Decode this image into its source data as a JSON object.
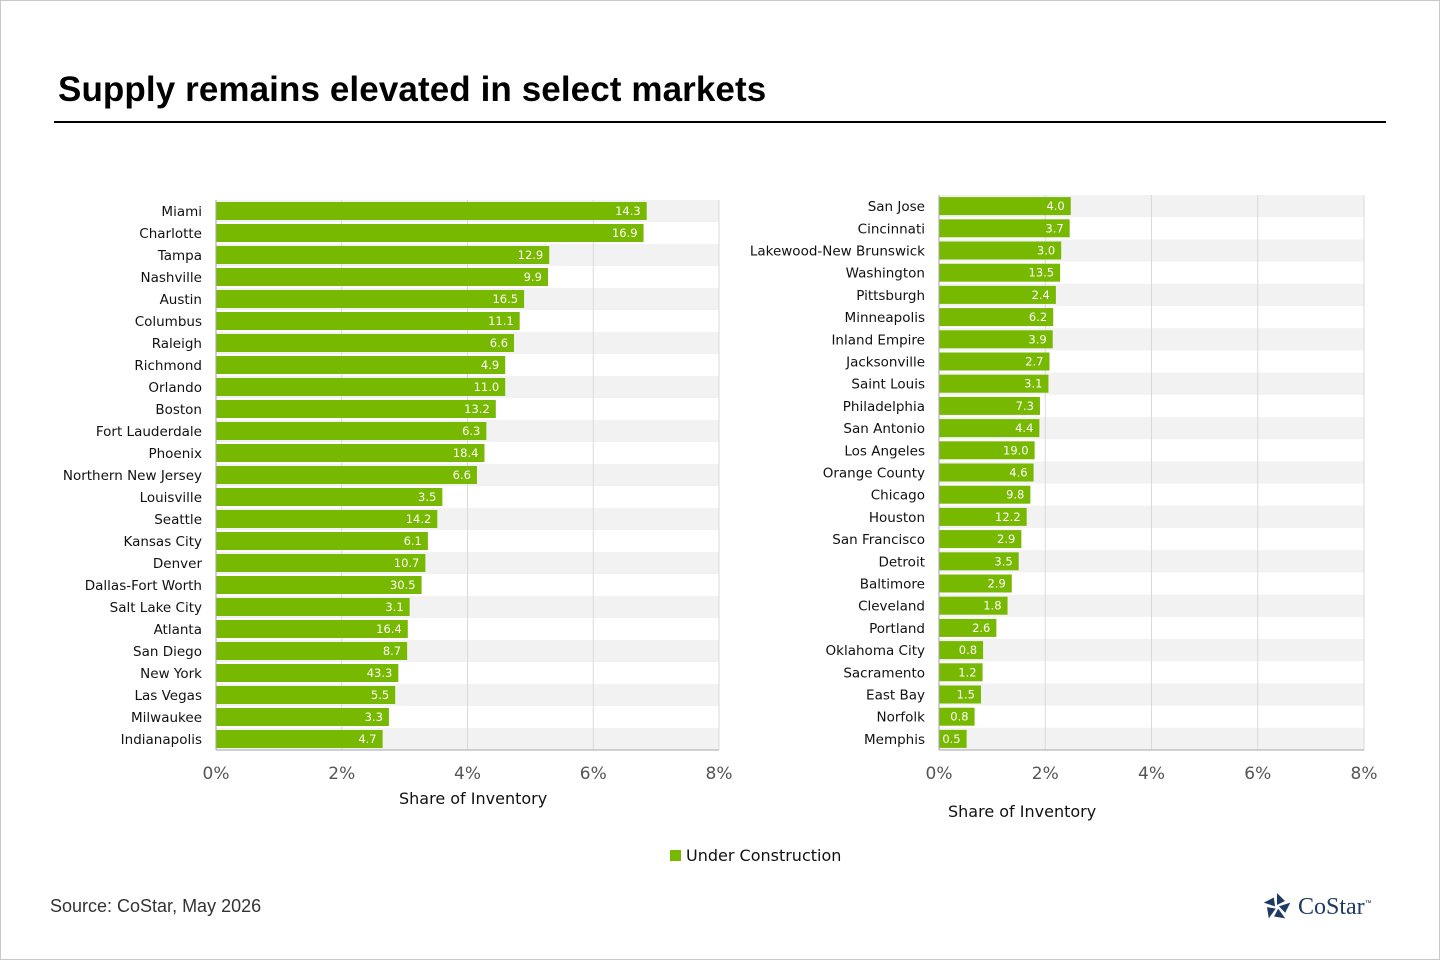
{
  "title": "Supply remains elevated in select markets",
  "legend": {
    "label": "Under Construction",
    "color": "#77b800"
  },
  "source": "Source: CoStar, May 2026",
  "logo": {
    "name": "costar-logo",
    "text": "CoStar",
    "tm": "™"
  },
  "colors": {
    "bar": "#77b800",
    "band": "#f2f2f2",
    "grid": "#d9d9d9",
    "axis": "#a6a6a6"
  },
  "chart_data": [
    {
      "type": "bar",
      "orientation": "horizontal",
      "xlabel": "Share of Inventory",
      "xlim": [
        0,
        8
      ],
      "xticks": [
        "0%",
        "2%",
        "4%",
        "6%",
        "8%"
      ],
      "categories": [
        "Miami",
        "Charlotte",
        "Tampa",
        "Nashville",
        "Austin",
        "Columbus",
        "Raleigh",
        "Richmond",
        "Orlando",
        "Boston",
        "Fort Lauderdale",
        "Phoenix",
        "Northern New Jersey",
        "Louisville",
        "Seattle",
        "Kansas City",
        "Denver",
        "Dallas-Fort Worth",
        "Salt Lake City",
        "Atlanta",
        "San Diego",
        "New York",
        "Las Vegas",
        "Milwaukee",
        "Indianapolis"
      ],
      "series": [
        {
          "name": "Under Construction",
          "share_pct": [
            6.85,
            6.8,
            5.3,
            5.28,
            4.9,
            4.83,
            4.74,
            4.6,
            4.6,
            4.45,
            4.3,
            4.27,
            4.15,
            3.6,
            3.52,
            3.37,
            3.33,
            3.27,
            3.08,
            3.05,
            3.04,
            2.9,
            2.85,
            2.75,
            2.65
          ],
          "labels": [
            "14.3",
            "16.9",
            "12.9",
            "9.9",
            "16.5",
            "11.1",
            "6.6",
            "4.9",
            "11.0",
            "13.2",
            "6.3",
            "18.4",
            "6.6",
            "3.5",
            "14.2",
            "6.1",
            "10.7",
            "30.5",
            "3.1",
            "16.4",
            "8.7",
            "43.3",
            "5.5",
            "3.3",
            "4.7"
          ]
        }
      ]
    },
    {
      "type": "bar",
      "orientation": "horizontal",
      "xlabel": "Share of Inventory",
      "xlim": [
        0,
        8
      ],
      "xticks": [
        "0%",
        "2%",
        "4%",
        "6%",
        "8%"
      ],
      "categories": [
        "San Jose",
        "Cincinnati",
        "Lakewood-New Brunswick",
        "Washington",
        "Pittsburgh",
        "Minneapolis",
        "Inland Empire",
        "Jacksonville",
        "Saint Louis",
        "Philadelphia",
        "San Antonio",
        "Los Angeles",
        "Orange County",
        "Chicago",
        "Houston",
        "San Francisco",
        "Detroit",
        "Baltimore",
        "Cleveland",
        "Portland",
        "Oklahoma City",
        "Sacramento",
        "East Bay",
        "Norfolk",
        "Memphis"
      ],
      "series": [
        {
          "name": "Under Construction",
          "share_pct": [
            2.48,
            2.46,
            2.3,
            2.28,
            2.2,
            2.15,
            2.14,
            2.08,
            2.06,
            1.9,
            1.89,
            1.8,
            1.78,
            1.72,
            1.65,
            1.55,
            1.5,
            1.37,
            1.29,
            1.08,
            0.83,
            0.82,
            0.79,
            0.67,
            0.52
          ],
          "labels": [
            "4.0",
            "3.7",
            "3.0",
            "13.5",
            "2.4",
            "6.2",
            "3.9",
            "2.7",
            "3.1",
            "7.3",
            "4.4",
            "19.0",
            "4.6",
            "9.8",
            "12.2",
            "2.9",
            "3.5",
            "2.9",
            "1.8",
            "2.6",
            "0.8",
            "1.2",
            "1.5",
            "0.8",
            "0.5"
          ]
        }
      ]
    }
  ]
}
